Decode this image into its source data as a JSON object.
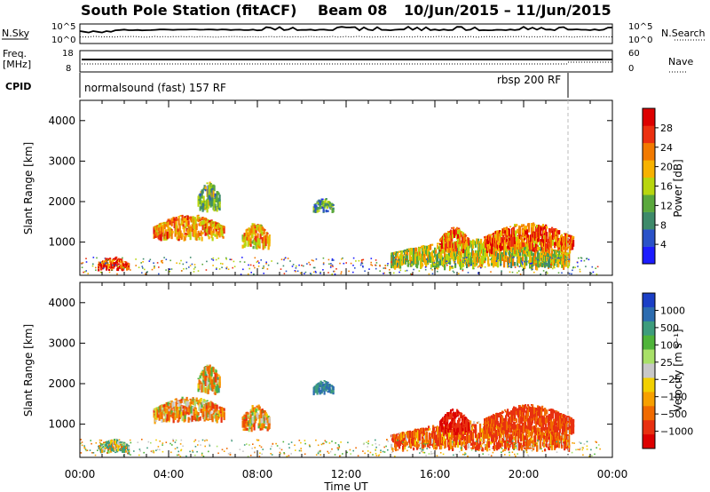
{
  "header": {
    "station": "South Pole Station (fitACF)",
    "beam": "Beam 08",
    "dates": "10/Jun/2015 – 11/Jun/2015"
  },
  "summary_panels": {
    "nsky_label": "N.Sky",
    "nsky_ticks": [
      "10^5",
      "10^0"
    ],
    "nsearch_label": "N.Search",
    "nsearch_ticks": [
      "10^5",
      "10^0"
    ],
    "freq_label_line1": "Freq.",
    "freq_label_line2": "[MHz]",
    "freq_ticks": [
      "18",
      "8"
    ],
    "nave_label": "Nave",
    "nave_ticks": [
      "60",
      "0"
    ],
    "cpid_label": "CPID",
    "cpid_segments": [
      {
        "name": "normalsound (fast) 157 RF",
        "start_hour": 0
      },
      {
        "name": "rbsp 200 RF",
        "start_hour": 22
      }
    ]
  },
  "chart_data": [
    {
      "type": "heatmap",
      "parameter": "Power",
      "ylabel": "Slant Range [km]",
      "ylim": [
        180,
        4500
      ],
      "yticks": [
        "1000",
        "2000",
        "3000",
        "4000"
      ],
      "xlim_hours": [
        0,
        24
      ],
      "colorbar": {
        "label": "Power [dB]",
        "ticks": [
          "4",
          "8",
          "12",
          "16",
          "20",
          "24",
          "28"
        ],
        "colors": [
          "#1c1cff",
          "#2a52c8",
          "#3e8a6a",
          "#5aa83c",
          "#b8d60e",
          "#f7b200",
          "#f27a00",
          "#ec3010",
          "#dd0000"
        ]
      },
      "echo_regions": [
        {
          "t0": 0.8,
          "t1": 2.2,
          "r0": 250,
          "r1": 650,
          "value": 26
        },
        {
          "t0": 3.3,
          "t1": 6.5,
          "r0": 1000,
          "r1": 1700,
          "value": 22
        },
        {
          "t0": 5.3,
          "t1": 6.3,
          "r0": 1700,
          "r1": 2500,
          "value": 12
        },
        {
          "t0": 7.3,
          "t1": 8.5,
          "r0": 800,
          "r1": 1500,
          "value": 20
        },
        {
          "t0": 10.5,
          "t1": 11.4,
          "r0": 1700,
          "r1": 2100,
          "value": 10
        },
        {
          "t0": 14.0,
          "t1": 22.0,
          "r0": 300,
          "r1": 1100,
          "value": 16
        },
        {
          "t0": 16.2,
          "t1": 17.5,
          "r0": 700,
          "r1": 1400,
          "value": 22
        },
        {
          "t0": 18.2,
          "t1": 22.2,
          "r0": 700,
          "r1": 1500,
          "value": 24
        }
      ]
    },
    {
      "type": "heatmap",
      "parameter": "Velocity",
      "ylabel": "Slant Range [km]",
      "ylim": [
        180,
        4500
      ],
      "yticks": [
        "1000",
        "2000",
        "3000",
        "4000"
      ],
      "xlim_hours": [
        0,
        24
      ],
      "xlabel": "Time UT",
      "xticks": [
        "00:00",
        "04:00",
        "08:00",
        "12:00",
        "16:00",
        "20:00",
        "00:00"
      ],
      "colorbar": {
        "label": "Velocity [m s⁻¹]",
        "ticks": [
          "1000",
          "500",
          "100",
          "25",
          "−25",
          "−100",
          "−500",
          "−1000"
        ],
        "colors": [
          "#1b3fc6",
          "#2c6cb0",
          "#3d9c7c",
          "#4fb43a",
          "#a8e068",
          "#c8c8c8",
          "#f2d000",
          "#f7a000",
          "#f06a00",
          "#e83010",
          "#dd0000"
        ]
      },
      "echo_regions": [
        {
          "t0": 0.8,
          "t1": 2.2,
          "r0": 250,
          "r1": 650,
          "value": 60
        },
        {
          "t0": 3.3,
          "t1": 6.5,
          "r0": 1000,
          "r1": 1700,
          "value": -120
        },
        {
          "t0": 5.3,
          "t1": 6.3,
          "r0": 1700,
          "r1": 2500,
          "value": -60
        },
        {
          "t0": 7.3,
          "t1": 8.5,
          "r0": 800,
          "r1": 1500,
          "value": -100
        },
        {
          "t0": 10.5,
          "t1": 11.4,
          "r0": 1700,
          "r1": 2100,
          "value": 300
        },
        {
          "t0": 14.0,
          "t1": 22.0,
          "r0": 300,
          "r1": 1100,
          "value": -200
        },
        {
          "t0": 16.2,
          "t1": 17.5,
          "r0": 700,
          "r1": 1400,
          "value": -500
        },
        {
          "t0": 18.2,
          "t1": 22.2,
          "r0": 700,
          "r1": 1500,
          "value": -300
        }
      ]
    }
  ]
}
